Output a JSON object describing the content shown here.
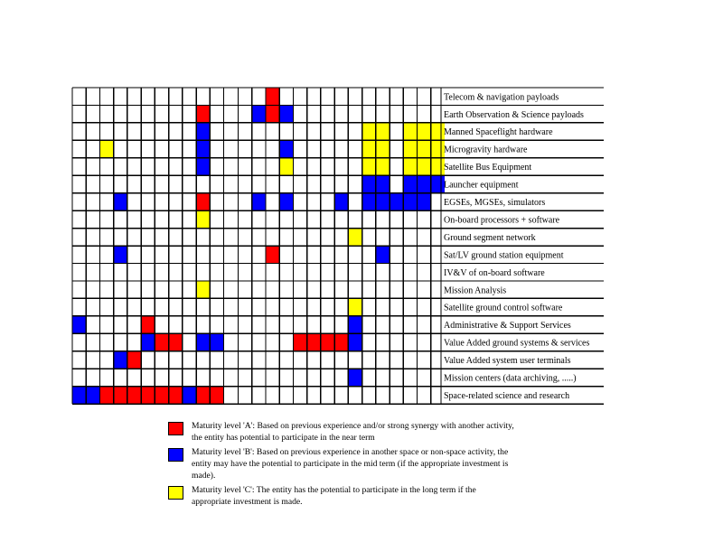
{
  "chart_data": {
    "type": "table",
    "columns_count": 26,
    "rows": [
      "Telecom & navigation payloads",
      "Earth Observation & Science payloads",
      "Manned Spaceflight hardware",
      "Microgravity hardware",
      "Satellite Bus Equipment",
      "Launcher equipment",
      "EGSEs, MGSEs, simulators",
      "On-board processors + software",
      "Ground segment network",
      "Sat/LV ground station equipment",
      "IV&V of on-board software",
      "Mission Analysis",
      "Satellite ground control software",
      "Administrative & Support Services",
      "Value Added ground systems & services",
      "Value Added system user terminals",
      "Mission centers (data archiving, .....)",
      "Space-related science and research"
    ],
    "cells": [
      {
        "row": 0,
        "col": 13,
        "level": "A"
      },
      {
        "row": 1,
        "col": 9,
        "level": "A"
      },
      {
        "row": 1,
        "col": 12,
        "level": "B"
      },
      {
        "row": 1,
        "col": 13,
        "level": "A"
      },
      {
        "row": 1,
        "col": 14,
        "level": "B"
      },
      {
        "row": 2,
        "col": 9,
        "level": "B"
      },
      {
        "row": 2,
        "col": 20,
        "level": "C"
      },
      {
        "row": 2,
        "col": 21,
        "level": "C"
      },
      {
        "row": 2,
        "col": 23,
        "level": "C"
      },
      {
        "row": 2,
        "col": 24,
        "level": "C"
      },
      {
        "row": 2,
        "col": 25,
        "level": "C"
      },
      {
        "row": 3,
        "col": 2,
        "level": "C"
      },
      {
        "row": 3,
        "col": 9,
        "level": "B"
      },
      {
        "row": 3,
        "col": 14,
        "level": "B"
      },
      {
        "row": 3,
        "col": 20,
        "level": "C"
      },
      {
        "row": 3,
        "col": 21,
        "level": "C"
      },
      {
        "row": 3,
        "col": 23,
        "level": "C"
      },
      {
        "row": 3,
        "col": 24,
        "level": "C"
      },
      {
        "row": 3,
        "col": 25,
        "level": "C"
      },
      {
        "row": 4,
        "col": 9,
        "level": "B"
      },
      {
        "row": 4,
        "col": 14,
        "level": "C"
      },
      {
        "row": 4,
        "col": 20,
        "level": "C"
      },
      {
        "row": 4,
        "col": 21,
        "level": "C"
      },
      {
        "row": 4,
        "col": 23,
        "level": "C"
      },
      {
        "row": 4,
        "col": 24,
        "level": "C"
      },
      {
        "row": 4,
        "col": 25,
        "level": "C"
      },
      {
        "row": 5,
        "col": 20,
        "level": "B"
      },
      {
        "row": 5,
        "col": 21,
        "level": "B"
      },
      {
        "row": 5,
        "col": 23,
        "level": "B"
      },
      {
        "row": 5,
        "col": 24,
        "level": "B"
      },
      {
        "row": 5,
        "col": 25,
        "level": "B"
      },
      {
        "row": 6,
        "col": 3,
        "level": "B"
      },
      {
        "row": 6,
        "col": 9,
        "level": "A"
      },
      {
        "row": 6,
        "col": 12,
        "level": "B"
      },
      {
        "row": 6,
        "col": 14,
        "level": "B"
      },
      {
        "row": 6,
        "col": 18,
        "level": "B"
      },
      {
        "row": 6,
        "col": 20,
        "level": "B"
      },
      {
        "row": 6,
        "col": 21,
        "level": "B"
      },
      {
        "row": 6,
        "col": 22,
        "level": "B"
      },
      {
        "row": 6,
        "col": 23,
        "level": "B"
      },
      {
        "row": 6,
        "col": 24,
        "level": "B"
      },
      {
        "row": 7,
        "col": 9,
        "level": "C"
      },
      {
        "row": 8,
        "col": 19,
        "level": "C"
      },
      {
        "row": 9,
        "col": 3,
        "level": "B"
      },
      {
        "row": 9,
        "col": 13,
        "level": "A"
      },
      {
        "row": 9,
        "col": 21,
        "level": "B"
      },
      {
        "row": 11,
        "col": 9,
        "level": "C"
      },
      {
        "row": 12,
        "col": 19,
        "level": "C"
      },
      {
        "row": 13,
        "col": 0,
        "level": "B"
      },
      {
        "row": 13,
        "col": 5,
        "level": "A"
      },
      {
        "row": 13,
        "col": 19,
        "level": "B"
      },
      {
        "row": 14,
        "col": 5,
        "level": "B"
      },
      {
        "row": 14,
        "col": 6,
        "level": "A"
      },
      {
        "row": 14,
        "col": 7,
        "level": "A"
      },
      {
        "row": 14,
        "col": 9,
        "level": "B"
      },
      {
        "row": 14,
        "col": 10,
        "level": "B"
      },
      {
        "row": 14,
        "col": 15,
        "level": "A"
      },
      {
        "row": 14,
        "col": 16,
        "level": "A"
      },
      {
        "row": 14,
        "col": 17,
        "level": "A"
      },
      {
        "row": 14,
        "col": 18,
        "level": "A"
      },
      {
        "row": 14,
        "col": 19,
        "level": "B"
      },
      {
        "row": 15,
        "col": 3,
        "level": "B"
      },
      {
        "row": 15,
        "col": 4,
        "level": "A"
      },
      {
        "row": 16,
        "col": 19,
        "level": "B"
      },
      {
        "row": 17,
        "col": 0,
        "level": "B"
      },
      {
        "row": 17,
        "col": 1,
        "level": "B"
      },
      {
        "row": 17,
        "col": 2,
        "level": "A"
      },
      {
        "row": 17,
        "col": 3,
        "level": "A"
      },
      {
        "row": 17,
        "col": 4,
        "level": "A"
      },
      {
        "row": 17,
        "col": 5,
        "level": "A"
      },
      {
        "row": 17,
        "col": 6,
        "level": "A"
      },
      {
        "row": 17,
        "col": 7,
        "level": "A"
      },
      {
        "row": 17,
        "col": 8,
        "level": "B"
      },
      {
        "row": 17,
        "col": 9,
        "level": "A"
      },
      {
        "row": 17,
        "col": 10,
        "level": "A"
      }
    ],
    "levels": {
      "A": "#ff0000",
      "B": "#0000ff",
      "C": "#ffff00"
    },
    "legend": [
      {
        "level": "A",
        "color": "#ff0000",
        "text": "Maturity level 'A': Based on previous experience and/or strong synergy with another activity, the entity has potential to participate in the near term"
      },
      {
        "level": "B",
        "color": "#0000ff",
        "text": "Maturity level 'B': Based on previous experience in another space or non-space activity, the entity may have the potential to participate in the mid term (if the appropriate investment is made)."
      },
      {
        "level": "C",
        "color": "#ffff00",
        "text": "Maturity level 'C': The entity has the potential to participate in the long term if the appropriate investment is made."
      }
    ]
  }
}
